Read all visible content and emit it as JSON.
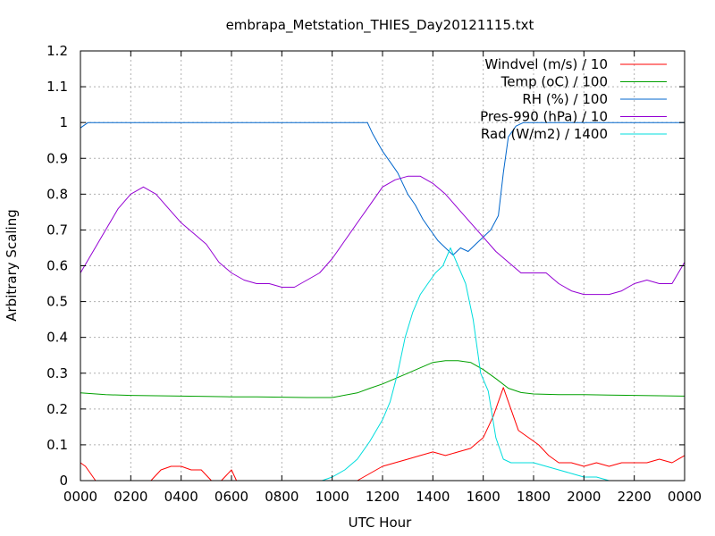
{
  "chart_data": {
    "type": "line",
    "title": "embrapa_Metstation_THIES_Day20121115.txt",
    "xlabel": "UTC Hour",
    "ylabel": "Arbitrary Scaling",
    "xlim": [
      0,
      24
    ],
    "ylim": [
      0,
      1.2
    ],
    "grid": true,
    "legend_position": "top-right",
    "x_ticks": [
      {
        "v": 0,
        "label": "0000"
      },
      {
        "v": 2,
        "label": "0200"
      },
      {
        "v": 4,
        "label": "0400"
      },
      {
        "v": 6,
        "label": "0600"
      },
      {
        "v": 8,
        "label": "0800"
      },
      {
        "v": 10,
        "label": "1000"
      },
      {
        "v": 12,
        "label": "1200"
      },
      {
        "v": 14,
        "label": "1400"
      },
      {
        "v": 16,
        "label": "1600"
      },
      {
        "v": 18,
        "label": "1800"
      },
      {
        "v": 20,
        "label": "2000"
      },
      {
        "v": 22,
        "label": "2200"
      },
      {
        "v": 24,
        "label": "0000"
      }
    ],
    "y_ticks": [
      {
        "v": 0,
        "label": "0"
      },
      {
        "v": 0.1,
        "label": "0.1"
      },
      {
        "v": 0.2,
        "label": "0.2"
      },
      {
        "v": 0.3,
        "label": "0.3"
      },
      {
        "v": 0.4,
        "label": "0.4"
      },
      {
        "v": 0.5,
        "label": "0.5"
      },
      {
        "v": 0.6,
        "label": "0.6"
      },
      {
        "v": 0.7,
        "label": "0.7"
      },
      {
        "v": 0.8,
        "label": "0.8"
      },
      {
        "v": 0.9,
        "label": "0.9"
      },
      {
        "v": 1.0,
        "label": "1"
      },
      {
        "v": 1.1,
        "label": "1.1"
      },
      {
        "v": 1.2,
        "label": "1.2"
      }
    ],
    "series": [
      {
        "name": "Windvel (m/s) / 10",
        "color": "#ff0000",
        "x": [
          0,
          0.2,
          0.4,
          0.6,
          1.0,
          2.0,
          2.8,
          3.2,
          3.6,
          4.0,
          4.4,
          4.8,
          5.2,
          5.6,
          6.0,
          6.2,
          7.0,
          8.0,
          9.0,
          10.0,
          11.0,
          11.5,
          12.0,
          12.5,
          13.0,
          13.5,
          14.0,
          14.5,
          15.0,
          15.5,
          16.0,
          16.4,
          16.8,
          17.0,
          17.4,
          17.8,
          18.2,
          18.6,
          19.0,
          19.5,
          20.0,
          20.5,
          21.0,
          21.5,
          22.0,
          22.5,
          23.0,
          23.5,
          24.0
        ],
        "y": [
          0.05,
          0.04,
          0.02,
          0.0,
          0.0,
          0.0,
          0.0,
          0.03,
          0.04,
          0.04,
          0.03,
          0.03,
          0.0,
          0.0,
          0.03,
          0.0,
          0.0,
          0.0,
          0.0,
          0.0,
          0.0,
          0.02,
          0.04,
          0.05,
          0.06,
          0.07,
          0.08,
          0.07,
          0.08,
          0.09,
          0.12,
          0.18,
          0.26,
          0.22,
          0.14,
          0.12,
          0.1,
          0.07,
          0.05,
          0.05,
          0.04,
          0.05,
          0.04,
          0.05,
          0.05,
          0.05,
          0.06,
          0.05,
          0.07
        ]
      },
      {
        "name": "Temp (oC) / 100",
        "color": "#00a000",
        "x": [
          0,
          1,
          2,
          3,
          4,
          5,
          6,
          7,
          8,
          9,
          10,
          11,
          11.5,
          12,
          12.5,
          13,
          13.5,
          14,
          14.5,
          15,
          15.5,
          16,
          16.5,
          17,
          17.5,
          18,
          19,
          20,
          21,
          22,
          23,
          24
        ],
        "y": [
          0.245,
          0.24,
          0.238,
          0.237,
          0.236,
          0.235,
          0.234,
          0.234,
          0.233,
          0.232,
          0.232,
          0.245,
          0.258,
          0.27,
          0.285,
          0.3,
          0.315,
          0.33,
          0.335,
          0.335,
          0.33,
          0.31,
          0.285,
          0.258,
          0.246,
          0.242,
          0.24,
          0.24,
          0.239,
          0.238,
          0.237,
          0.236
        ]
      },
      {
        "name": "RH (%) / 100",
        "color": "#0066cc",
        "x": [
          0,
          0.3,
          1,
          3,
          5,
          7,
          9,
          10,
          11,
          11.4,
          11.6,
          12.0,
          12.3,
          12.6,
          13.0,
          13.3,
          13.6,
          13.9,
          14.2,
          14.5,
          14.8,
          15.1,
          15.4,
          15.7,
          16.0,
          16.3,
          16.6,
          16.8,
          17.0,
          17.3,
          17.6,
          18.0,
          19,
          20,
          21,
          22,
          23,
          24
        ],
        "y": [
          0.985,
          1.0,
          1.0,
          1.0,
          1.0,
          1.0,
          1.0,
          1.0,
          1.0,
          1.0,
          0.97,
          0.92,
          0.89,
          0.86,
          0.8,
          0.77,
          0.73,
          0.7,
          0.67,
          0.65,
          0.63,
          0.65,
          0.64,
          0.66,
          0.68,
          0.7,
          0.74,
          0.86,
          0.96,
          0.99,
          1.0,
          1.0,
          1.0,
          1.0,
          1.0,
          1.0,
          1.0,
          1.0
        ]
      },
      {
        "name": "Pres-990 (hPa) / 10",
        "color": "#9400d3",
        "x": [
          0,
          0.5,
          1,
          1.5,
          2,
          2.5,
          3,
          3.5,
          4,
          4.5,
          5,
          5.5,
          6,
          6.5,
          7,
          7.5,
          8,
          8.5,
          9,
          9.5,
          10,
          10.5,
          11,
          11.5,
          12,
          12.5,
          13,
          13.5,
          14,
          14.5,
          15,
          15.5,
          16,
          16.5,
          17,
          17.5,
          18,
          18.5,
          19,
          19.5,
          20,
          20.5,
          21,
          21.5,
          22,
          22.5,
          23,
          23.5,
          24
        ],
        "y": [
          0.58,
          0.64,
          0.7,
          0.76,
          0.8,
          0.82,
          0.8,
          0.76,
          0.72,
          0.69,
          0.66,
          0.61,
          0.58,
          0.56,
          0.55,
          0.55,
          0.54,
          0.54,
          0.56,
          0.58,
          0.62,
          0.67,
          0.72,
          0.77,
          0.82,
          0.84,
          0.85,
          0.85,
          0.83,
          0.8,
          0.76,
          0.72,
          0.68,
          0.64,
          0.61,
          0.58,
          0.58,
          0.58,
          0.55,
          0.53,
          0.52,
          0.52,
          0.52,
          0.53,
          0.55,
          0.56,
          0.55,
          0.55,
          0.61
        ]
      },
      {
        "name": "Rad (W/m2) / 1400",
        "color": "#00dddd",
        "x": [
          0,
          9.6,
          10.0,
          10.5,
          11.0,
          11.5,
          12.0,
          12.3,
          12.6,
          12.9,
          13.2,
          13.5,
          13.8,
          14.1,
          14.4,
          14.7,
          15.0,
          15.3,
          15.6,
          15.9,
          16.2,
          16.5,
          16.8,
          17.1,
          17.5,
          18.0,
          18.5,
          19.0,
          19.5,
          20.0,
          20.5,
          21.0,
          21.5,
          22.0,
          22.3,
          24.0
        ],
        "y": [
          0.0,
          0.0,
          0.01,
          0.03,
          0.06,
          0.11,
          0.17,
          0.22,
          0.3,
          0.4,
          0.47,
          0.52,
          0.55,
          0.58,
          0.6,
          0.65,
          0.6,
          0.55,
          0.45,
          0.3,
          0.25,
          0.12,
          0.06,
          0.05,
          0.05,
          0.05,
          0.04,
          0.03,
          0.02,
          0.01,
          0.01,
          0.0,
          0.0,
          0.0,
          0.0,
          0.0
        ]
      }
    ]
  }
}
